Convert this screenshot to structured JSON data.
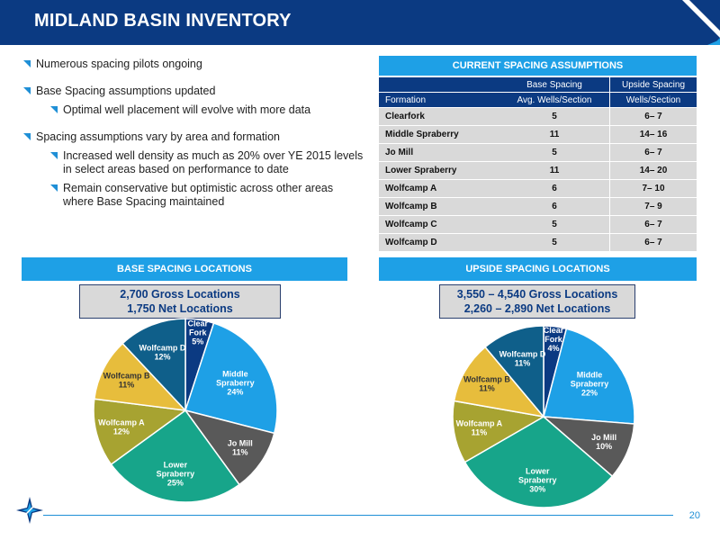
{
  "header": {
    "title": "MIDLAND BASIN INVENTORY"
  },
  "bullets": [
    {
      "text": "Numerous spacing pilots ongoing",
      "level": 1
    },
    {
      "text": "Base Spacing assumptions updated",
      "level": 1
    },
    {
      "text": "Optimal well placement will evolve with more data",
      "level": 2
    },
    {
      "text": "Spacing assumptions vary by area and formation",
      "level": 1
    },
    {
      "text": "Increased well density as much as 20% over YE 2015 levels in select areas based on performance to date",
      "level": 2
    },
    {
      "text": "Remain conservative but optimistic across other areas where Base Spacing maintained",
      "level": 2
    }
  ],
  "spacing_table": {
    "title": "CURRENT SPACING ASSUMPTIONS",
    "header_row1": [
      "",
      "Base Spacing",
      "Upside Spacing"
    ],
    "header_row2": [
      "Formation",
      "Avg. Wells/Section",
      "Wells/Section"
    ],
    "rows": [
      [
        "Clearfork",
        "5",
        "6– 7"
      ],
      [
        "Middle Spraberry",
        "11",
        "14– 16"
      ],
      [
        "Jo Mill",
        "5",
        "6– 7"
      ],
      [
        "Lower Spraberry",
        "11",
        "14– 20"
      ],
      [
        "Wolfcamp A",
        "6",
        "7– 10"
      ],
      [
        "Wolfcamp B",
        "6",
        "7– 9"
      ],
      [
        "Wolfcamp C",
        "5",
        "6– 7"
      ],
      [
        "Wolfcamp D",
        "5",
        "6– 7"
      ]
    ]
  },
  "base_section": {
    "title": "BASE SPACING LOCATIONS",
    "gross": "2,700 Gross Locations",
    "net": "1,750 Net Locations"
  },
  "upside_section": {
    "title": "UPSIDE SPACING LOCATIONS",
    "gross": "3,550 – 4,540 Gross Locations",
    "net": "2,260 – 2,890 Net Locations"
  },
  "colors": {
    "clearfork": "#0b3a82",
    "middle_spraberry": "#1ea0e6",
    "jo_mill": "#595959",
    "lower_spraberry": "#17a58a",
    "wolfcamp_a": "#a7a331",
    "wolfcamp_b": "#e7bd3c",
    "wolfcamp_d": "#0f5f8a"
  },
  "chart_data": [
    {
      "type": "pie",
      "slices": [
        {
          "label": "Clear Fork",
          "value": 5,
          "pct": "5%"
        },
        {
          "label": "Middle Spraberry",
          "value": 24,
          "pct": "24%"
        },
        {
          "label": "Jo Mill",
          "value": 11,
          "pct": "11%"
        },
        {
          "label": "Lower Spraberry",
          "value": 25,
          "pct": "25%"
        },
        {
          "label": "Wolfcamp A",
          "value": 12,
          "pct": "12%"
        },
        {
          "label": "Wolfcamp B",
          "value": 11,
          "pct": "11%"
        },
        {
          "label": "Wolfcamp D",
          "value": 12,
          "pct": "12%"
        }
      ]
    },
    {
      "type": "pie",
      "slices": [
        {
          "label": "Clear Fork",
          "value": 4,
          "pct": "4%"
        },
        {
          "label": "Middle Spraberry",
          "value": 22,
          "pct": "22%"
        },
        {
          "label": "Jo Mill",
          "value": 10,
          "pct": "10%"
        },
        {
          "label": "Lower Spraberry",
          "value": 30,
          "pct": "30%"
        },
        {
          "label": "Wolfcamp A",
          "value": 11,
          "pct": "11%"
        },
        {
          "label": "Wolfcamp B",
          "value": 11,
          "pct": "11%"
        },
        {
          "label": "Wolfcamp D",
          "value": 11,
          "pct": "11%"
        }
      ]
    }
  ],
  "footer": {
    "page_number": "20"
  }
}
